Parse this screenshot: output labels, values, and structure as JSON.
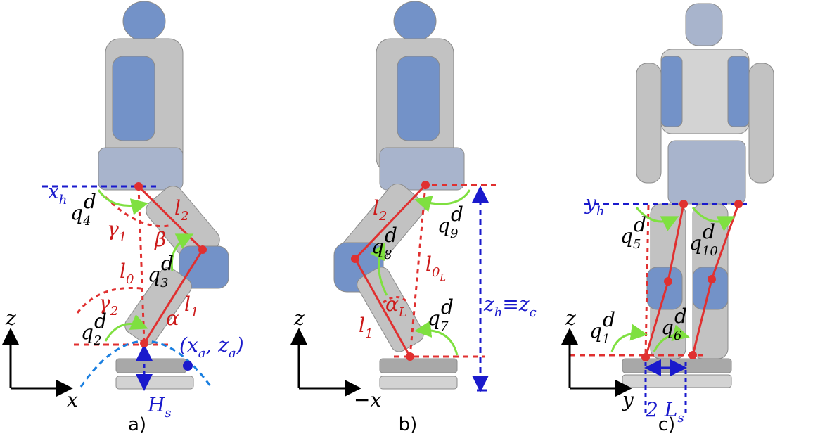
{
  "panels": [
    {
      "label": "a)",
      "annotations": [
        {
          "parts": [
            {
              "base": "x",
              "sub": "h"
            }
          ],
          "color": "#1a1acc"
        },
        {
          "parts": [
            {
              "base": "q",
              "sub": "4",
              "sup": "d"
            }
          ],
          "color": "#000000"
        },
        {
          "parts": [
            {
              "base": "γ",
              "sub": "1"
            }
          ],
          "color": "#cc1a1a"
        },
        {
          "parts": [
            {
              "base": "l",
              "sub": "2"
            }
          ],
          "color": "#cc1a1a"
        },
        {
          "parts": [
            {
              "base": "β"
            }
          ],
          "color": "#cc1a1a"
        },
        {
          "parts": [
            {
              "base": "l",
              "sub": "0"
            }
          ],
          "color": "#cc1a1a"
        },
        {
          "parts": [
            {
              "base": "q",
              "sub": "3",
              "sup": "d"
            }
          ],
          "color": "#000000"
        },
        {
          "parts": [
            {
              "base": "γ",
              "sub": "2"
            }
          ],
          "color": "#cc1a1a"
        },
        {
          "parts": [
            {
              "base": "l",
              "sub": "1"
            }
          ],
          "color": "#cc1a1a"
        },
        {
          "parts": [
            {
              "base": "α"
            }
          ],
          "color": "#cc1a1a"
        },
        {
          "parts": [
            {
              "base": "q",
              "sub": "2",
              "sup": "d"
            }
          ],
          "color": "#000000"
        },
        {
          "parts": [
            {
              "base": "(x",
              "sub": "a"
            },
            {
              "base": ", z",
              "sub": "a"
            },
            {
              "base": ")"
            }
          ],
          "color": "#1a1acc"
        },
        {
          "parts": [
            {
              "base": "H",
              "sub": "s"
            }
          ],
          "color": "#1a1acc"
        },
        {
          "parts": [
            {
              "base": "z"
            }
          ],
          "color": "#000000"
        },
        {
          "parts": [
            {
              "base": "x"
            }
          ],
          "color": "#000000"
        }
      ]
    },
    {
      "label": "b)",
      "annotations": [
        {
          "parts": [
            {
              "base": "l",
              "sub": "2"
            }
          ],
          "color": "#cc1a1a"
        },
        {
          "parts": [
            {
              "base": "q",
              "sub": "9",
              "sup": "d"
            }
          ],
          "color": "#000000"
        },
        {
          "parts": [
            {
              "base": "q",
              "sub": "8",
              "sup": "d"
            }
          ],
          "color": "#000000"
        },
        {
          "parts": [
            {
              "base": "l",
              "sub": "0",
              "subsub": "L"
            }
          ],
          "color": "#cc1a1a"
        },
        {
          "parts": [
            {
              "base": "z",
              "sub": "h"
            },
            {
              "base": "≡z",
              "sub": "c"
            }
          ],
          "color": "#1a1acc"
        },
        {
          "parts": [
            {
              "base": "α",
              "sub": "L"
            }
          ],
          "color": "#cc1a1a"
        },
        {
          "parts": [
            {
              "base": "q",
              "sub": "7",
              "sup": "d"
            }
          ],
          "color": "#000000"
        },
        {
          "parts": [
            {
              "base": "l",
              "sub": "1"
            }
          ],
          "color": "#cc1a1a"
        },
        {
          "parts": [
            {
              "base": "z"
            }
          ],
          "color": "#000000"
        },
        {
          "parts": [
            {
              "base": "−x"
            }
          ],
          "color": "#000000"
        }
      ]
    },
    {
      "label": "c)",
      "annotations": [
        {
          "parts": [
            {
              "base": "y",
              "sub": "h"
            }
          ],
          "color": "#1a1acc"
        },
        {
          "parts": [
            {
              "base": "q",
              "sub": "5",
              "sup": "d"
            }
          ],
          "color": "#000000"
        },
        {
          "parts": [
            {
              "base": "q",
              "sub": "10",
              "sup": "d"
            }
          ],
          "color": "#000000"
        },
        {
          "parts": [
            {
              "base": "q",
              "sub": "1",
              "sup": "d"
            }
          ],
          "color": "#000000"
        },
        {
          "parts": [
            {
              "base": "q",
              "sub": "6",
              "sup": "d"
            }
          ],
          "color": "#000000"
        },
        {
          "parts": [
            {
              "base": "z"
            }
          ],
          "color": "#000000"
        },
        {
          "parts": [
            {
              "base": "y"
            }
          ],
          "color": "#000000"
        },
        {
          "parts": [
            {
              "base": "2 L",
              "sub": "s"
            }
          ],
          "color": "#1a1acc"
        }
      ]
    }
  ]
}
